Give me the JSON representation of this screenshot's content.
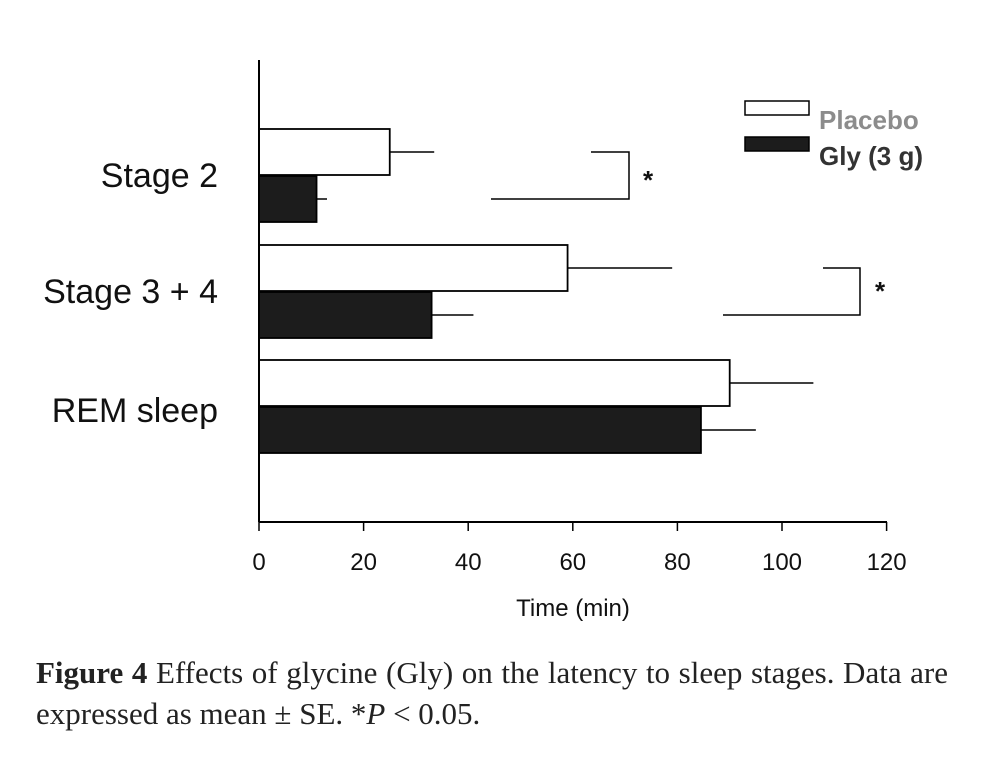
{
  "chart_data": {
    "type": "bar",
    "orientation": "horizontal",
    "categories": [
      "Stage 2",
      "Stage 3 + 4",
      "REM sleep"
    ],
    "series": [
      {
        "name": "Placebo",
        "color": "#ffffff",
        "values": [
          25,
          59,
          90
        ],
        "errors": [
          8.5,
          20,
          16
        ]
      },
      {
        "name": "Gly (3 g)",
        "color": "#1c1c1c",
        "values": [
          11,
          33,
          84.5
        ],
        "errors": [
          2,
          8,
          10.5
        ]
      }
    ],
    "xlabel": "Time (min)",
    "xlim": [
      0,
      120
    ],
    "xticks": [
      0,
      20,
      40,
      60,
      80,
      100,
      120
    ],
    "legend": {
      "position": "top-right",
      "colors": [
        "#8c8c8c",
        "#333333"
      ]
    },
    "significance": [
      {
        "category": "Stage 2",
        "marker": "*"
      },
      {
        "category": "Stage 3 + 4",
        "marker": "*"
      }
    ]
  },
  "caption": {
    "label": "Figure 4",
    "text_1": "Effects of glycine (Gly) on the latency to sleep stages. Data are expressed as mean ± SE. *",
    "p_symbol": "P",
    "text_2": " < 0.05."
  }
}
